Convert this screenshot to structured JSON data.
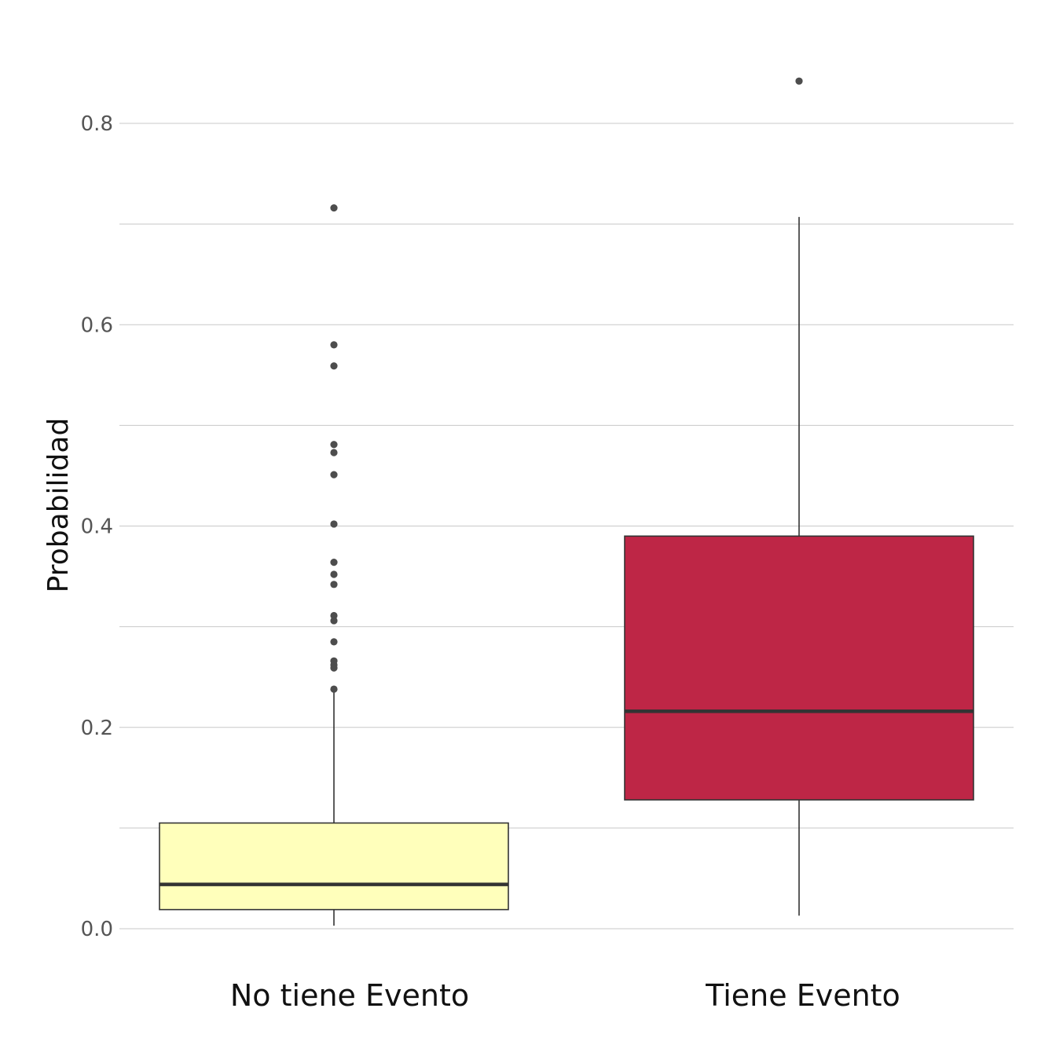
{
  "chart_data": {
    "type": "boxplot",
    "title": "",
    "xlabel": "",
    "ylabel": "Probabilidad",
    "ylim": [
      0,
      0.86
    ],
    "yticks": [
      0.0,
      0.2,
      0.4,
      0.6,
      0.8
    ],
    "ytick_labels": [
      "0.0",
      "0.2",
      "0.4",
      "0.6",
      "0.8"
    ],
    "grid": true,
    "legend": "none",
    "categories": [
      "No tiene Evento",
      "Tiene Evento"
    ],
    "boxes": [
      {
        "category": "No tiene Evento",
        "color": "#FFFFBB",
        "whisker_low": 0.003,
        "q1": 0.019,
        "median": 0.044,
        "q3": 0.105,
        "whisker_high": 0.236,
        "outliers": [
          0.716,
          0.58,
          0.559,
          0.481,
          0.473,
          0.451,
          0.402,
          0.364,
          0.352,
          0.342,
          0.311,
          0.306,
          0.285,
          0.266,
          0.262,
          0.259,
          0.238
        ]
      },
      {
        "category": "Tiene Evento",
        "color": "#BE2646",
        "whisker_low": 0.013,
        "q1": 0.128,
        "median": 0.216,
        "q3": 0.39,
        "whisker_high": 0.707,
        "outliers": [
          0.842
        ]
      }
    ]
  }
}
